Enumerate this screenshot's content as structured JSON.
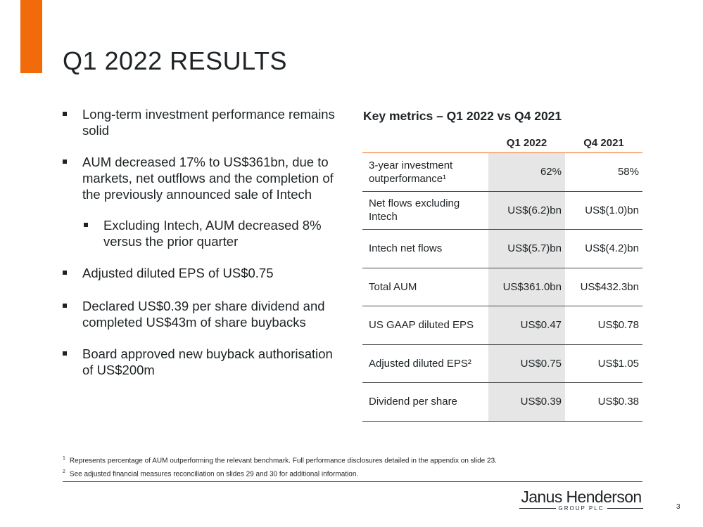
{
  "title": "Q1 2022 RESULTS",
  "bullets": [
    {
      "text": "Long-term investment performance remains solid"
    },
    {
      "text": "AUM decreased 17% to US$361bn, due to markets, net outflows and the completion of the previously announced sale of Intech"
    },
    {
      "text": "Excluding Intech, AUM decreased 8% versus the prior quarter"
    },
    {
      "text": "Adjusted diluted EPS of US$0.75"
    },
    {
      "text": "Declared US$0.39 per share dividend and completed US$43m of share buybacks"
    },
    {
      "text": "Board approved new buyback authorisation of US$200m"
    }
  ],
  "metrics": {
    "title": "Key metrics – Q1 2022 vs Q4 2021",
    "columns": [
      "Q1 2022",
      "Q4 2021"
    ],
    "rows": [
      {
        "label": "3-year investment outperformance¹",
        "q1": "62%",
        "q4": "58%"
      },
      {
        "label": "Net flows excluding Intech",
        "q1": "US$(6.2)bn",
        "q4": "US$(1.0)bn"
      },
      {
        "label": "Intech net flows",
        "q1": "US$(5.7)bn",
        "q4": "US$(4.2)bn"
      },
      {
        "label": "Total AUM",
        "q1": "US$361.0bn",
        "q4": "US$432.3bn"
      },
      {
        "label": "US GAAP diluted EPS",
        "q1": "US$0.47",
        "q4": "US$0.78"
      },
      {
        "label": "Adjusted diluted EPS²",
        "q1": "US$0.75",
        "q4": "US$1.05"
      },
      {
        "label": "Dividend per share",
        "q1": "US$0.39",
        "q4": "US$0.38"
      }
    ]
  },
  "footnotes": [
    {
      "mark": "1",
      "text": "Represents percentage of AUM outperforming the relevant benchmark. Full performance disclosures detailed in the appendix on slide 23."
    },
    {
      "mark": "2",
      "text": "See adjusted financial measures reconciliation on slides 29 and 30 for additional information."
    }
  ],
  "logo": {
    "name": "Janus Henderson",
    "sub": "GROUP PLC"
  },
  "page_number": "3",
  "colors": {
    "accent": "#f26b0a",
    "highlight": "#e6e6e6"
  }
}
